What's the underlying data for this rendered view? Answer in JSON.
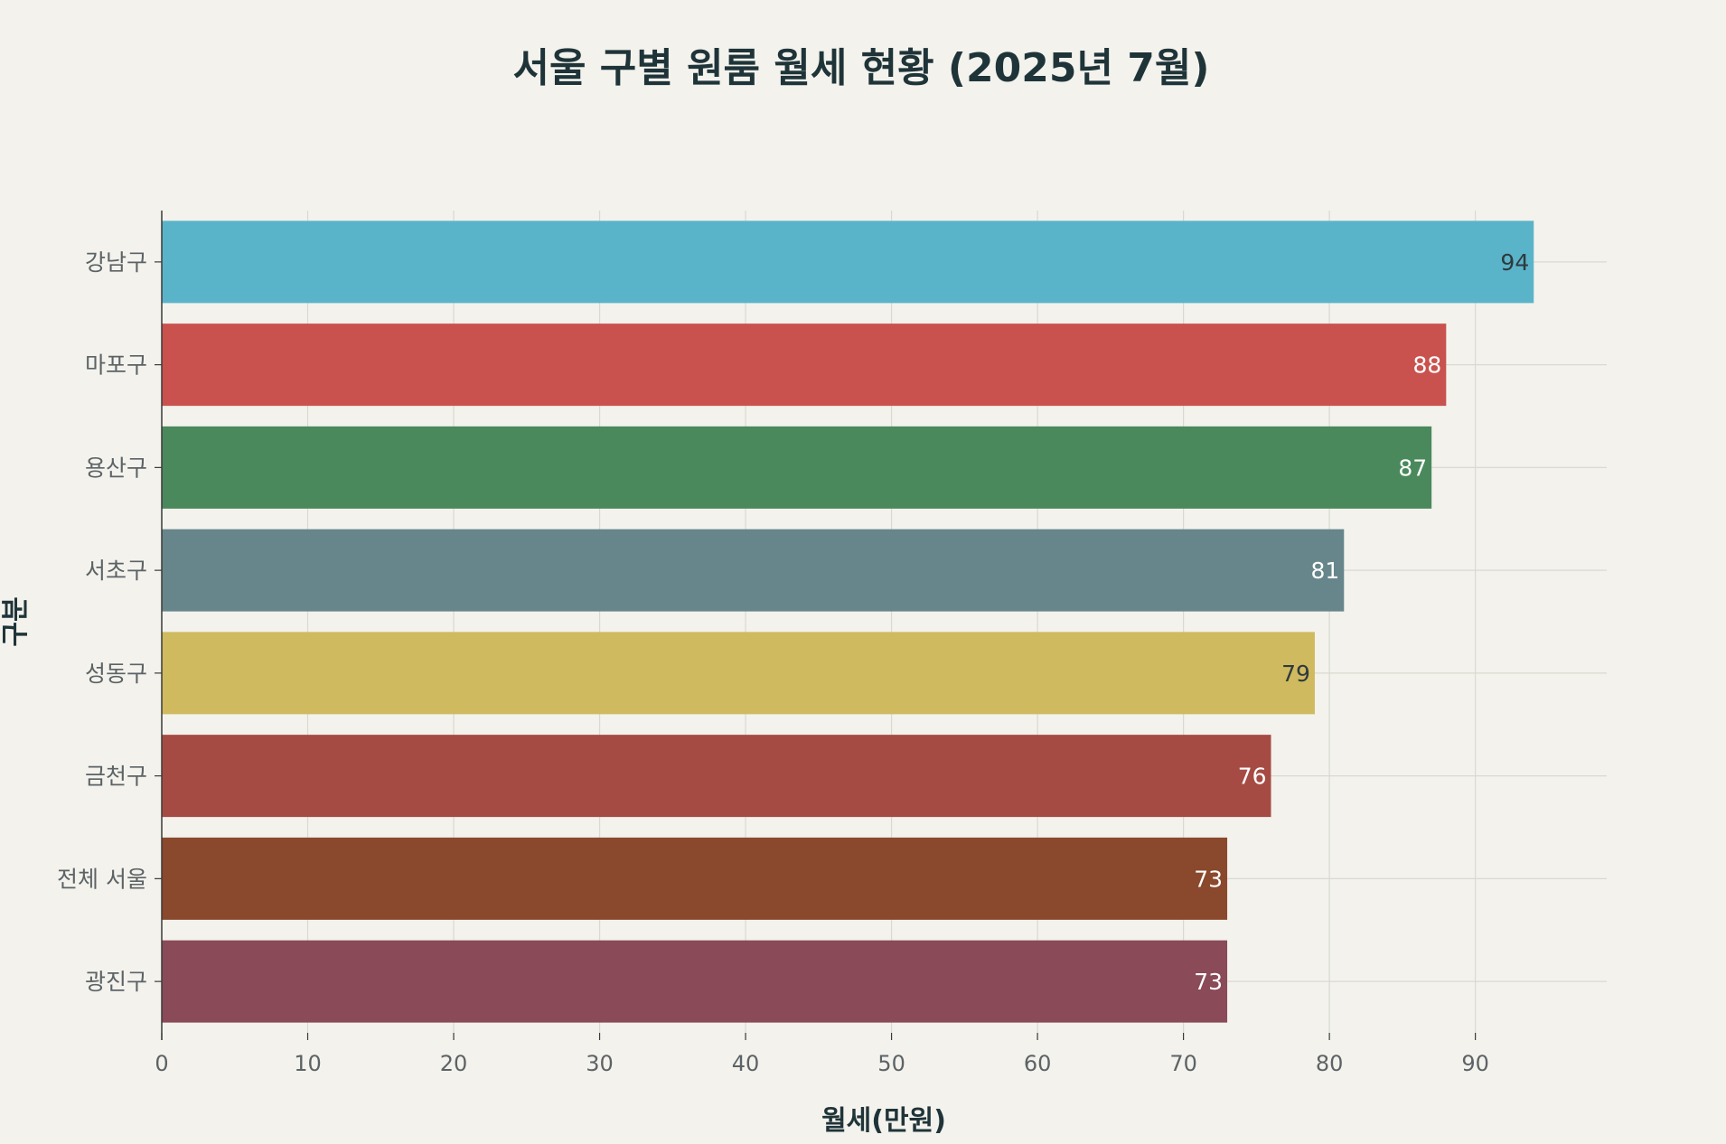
{
  "chart_data": {
    "type": "bar",
    "orientation": "horizontal",
    "title": "서울 구별 원룸 월세 현황 (2025년 7월)",
    "xlabel": "월세(만원)",
    "ylabel": "구분",
    "xlim": [
      0,
      99
    ],
    "xticks": [
      0,
      10,
      20,
      30,
      40,
      50,
      60,
      70,
      80,
      90
    ],
    "grid": true,
    "categories": [
      "강남구",
      "마포구",
      "용산구",
      "서초구",
      "성동구",
      "금천구",
      "전체 서울",
      "광진구"
    ],
    "values": [
      94,
      88,
      87,
      81,
      79,
      76,
      73,
      73
    ],
    "colors": [
      "#5ab4c9",
      "#c9524f",
      "#4a895b",
      "#67868b",
      "#cfba5f",
      "#a64b43",
      "#8a482d",
      "#8a4a58"
    ],
    "label_colors": [
      "#2f3a3d",
      "#ffffff",
      "#ffffff",
      "#ffffff",
      "#2f3a3d",
      "#ffffff",
      "#ffffff",
      "#ffffff"
    ]
  }
}
